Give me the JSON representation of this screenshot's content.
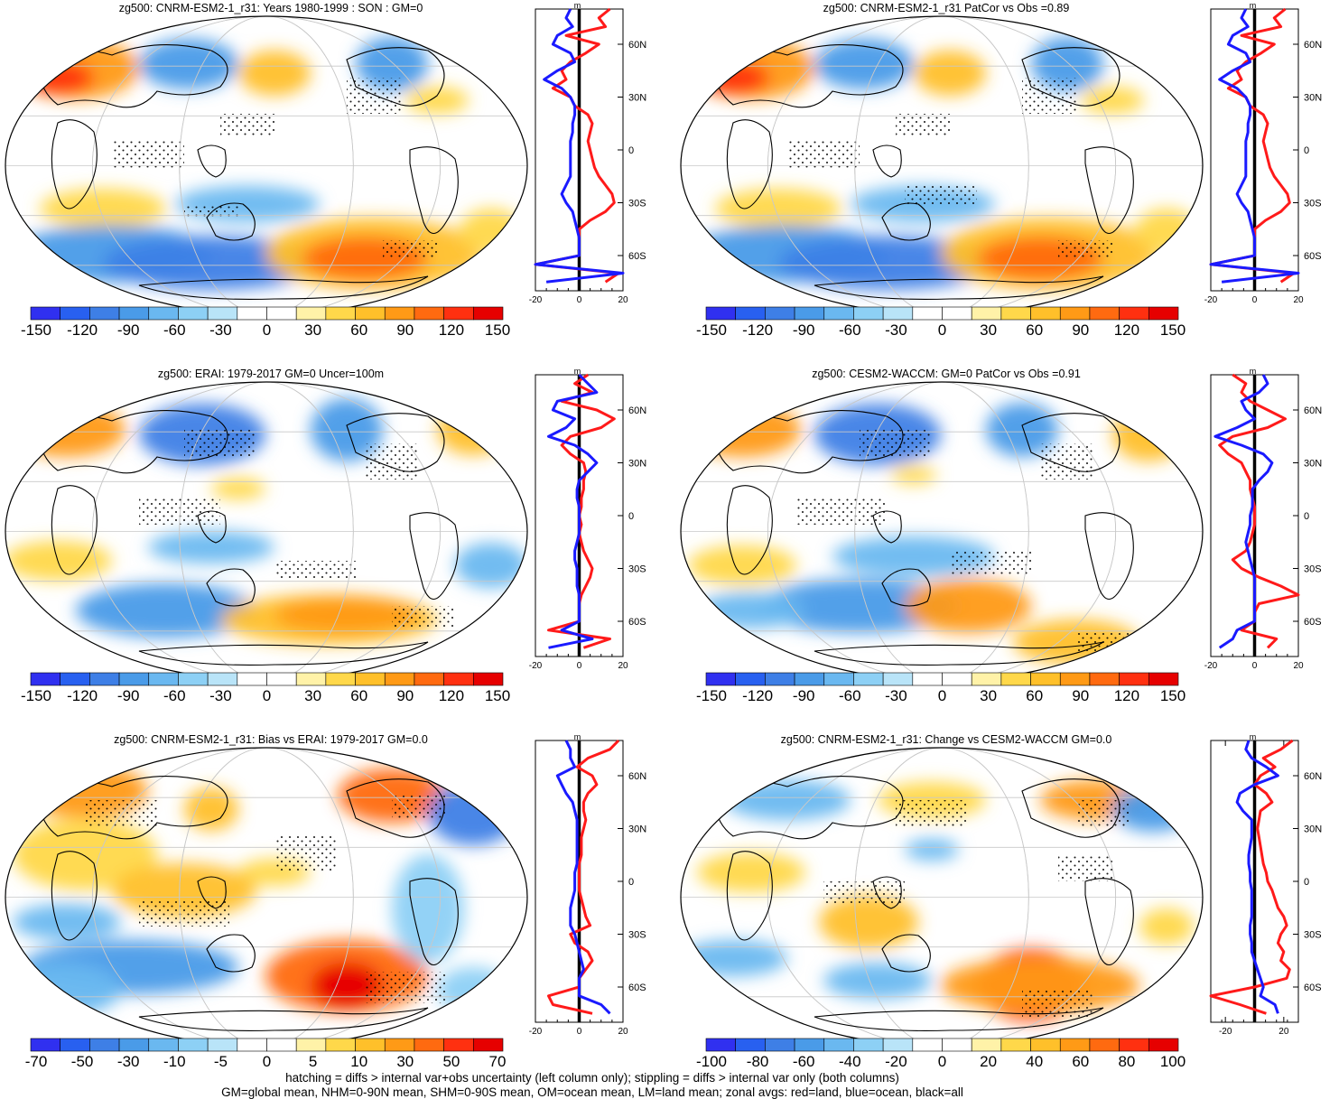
{
  "figure": {
    "footnote_line1": "hatching = diffs > internal var+obs uncertainty (left column only); stippling = diffs > internal var only (both columns)",
    "footnote_line2": "GM=global mean, NHM=0-90N mean, SHM=0-90S mean, OM=ocean mean, LM=land mean; zonal avgs: red=land, blue=ocean, black=all"
  },
  "colors": {
    "land_line": "#ff1a1a",
    "ocean_line": "#1a1aff",
    "all_line": "#000000",
    "palette_blue_to_red": [
      "#3030f0",
      "#2860f0",
      "#3e7fe6",
      "#4a9be8",
      "#6ab8f0",
      "#8dd0f5",
      "#b9e4f8",
      "#ffffff",
      "#ffffff",
      "#fff2a8",
      "#ffd84a",
      "#ffc02a",
      "#ff9a16",
      "#ff6a10",
      "#ff3010",
      "#e60000"
    ]
  },
  "chart_data": [
    {
      "type": "map",
      "title": "zg500: CNRM-ESM2-1_r31: Years 1980-1999 : SON : GM=0",
      "colorbar_labels": [
        "-150",
        "-120",
        "-90",
        "-60",
        "-30",
        "0",
        "30",
        "60",
        "90",
        "120",
        "150"
      ],
      "zonal_profile": {
        "type": "line",
        "units": "m",
        "x_ticks": [
          "-20",
          "0",
          "20"
        ],
        "xlim": [
          -20,
          20
        ],
        "y_ticks": [
          "60N",
          "30N",
          "0",
          "30S",
          "60S"
        ],
        "ylim_lat": [
          -80,
          80
        ],
        "lat": [
          80,
          75,
          70,
          65,
          60,
          55,
          50,
          45,
          40,
          35,
          30,
          25,
          20,
          15,
          10,
          5,
          0,
          -5,
          -10,
          -15,
          -20,
          -25,
          -30,
          -35,
          -40,
          -45,
          -50,
          -55,
          -60,
          -65,
          -70,
          -75
        ],
        "series": [
          {
            "name": "land",
            "values": [
              14,
              9,
              12,
              -6,
              9,
              3,
              -4,
              -8,
              -6,
              -12,
              -4,
              -2,
              4,
              6,
              5,
              4,
              5,
              6,
              7,
              9,
              12,
              15,
              16,
              12,
              5,
              0,
              0,
              0,
              0,
              -20,
              18,
              12
            ]
          },
          {
            "name": "ocean",
            "values": [
              -4,
              -6,
              -3,
              -10,
              -12,
              -4,
              -2,
              -10,
              -16,
              -8,
              -4,
              -2,
              -2,
              -3,
              -3,
              -4,
              -4,
              -4,
              -4,
              -4,
              -6,
              -8,
              -6,
              -3,
              -2,
              -1,
              0,
              0,
              0,
              -20,
              20,
              -15
            ]
          }
        ]
      }
    },
    {
      "type": "map",
      "title": "zg500: CNRM-ESM2-1_r31 PatCor vs Obs =0.89",
      "colorbar_labels": [
        "-150",
        "-120",
        "-90",
        "-60",
        "-30",
        "0",
        "30",
        "60",
        "90",
        "120",
        "150"
      ],
      "zonal_profile": {
        "type": "line",
        "units": "m",
        "x_ticks": [
          "-20",
          "0",
          "20"
        ],
        "xlim": [
          -20,
          20
        ],
        "y_ticks": [
          "60N",
          "30N",
          "0",
          "30S",
          "60S"
        ],
        "ylim_lat": [
          -80,
          80
        ],
        "lat": [
          80,
          75,
          70,
          65,
          60,
          55,
          50,
          45,
          40,
          35,
          30,
          25,
          20,
          15,
          10,
          5,
          0,
          -5,
          -10,
          -15,
          -20,
          -25,
          -30,
          -35,
          -40,
          -45,
          -50,
          -55,
          -60,
          -65,
          -70,
          -75
        ],
        "series": [
          {
            "name": "land",
            "values": [
              14,
              9,
              12,
              -6,
              9,
              3,
              -4,
              -8,
              -6,
              -12,
              -4,
              -2,
              4,
              6,
              5,
              4,
              5,
              6,
              7,
              9,
              12,
              15,
              16,
              12,
              5,
              0,
              0,
              0,
              0,
              -20,
              18,
              12
            ]
          },
          {
            "name": "ocean",
            "values": [
              -4,
              -6,
              -3,
              -10,
              -12,
              -4,
              -2,
              -10,
              -16,
              -8,
              -4,
              -2,
              -2,
              -3,
              -3,
              -4,
              -4,
              -4,
              -4,
              -4,
              -6,
              -8,
              -6,
              -3,
              -2,
              -1,
              0,
              0,
              0,
              -20,
              20,
              -15
            ]
          }
        ]
      }
    },
    {
      "type": "map",
      "title": "zg500: ERAI: 1979-2017 GM=0 Uncer=100m",
      "colorbar_labels": [
        "-150",
        "-120",
        "-90",
        "-60",
        "-30",
        "0",
        "30",
        "60",
        "90",
        "120",
        "150"
      ],
      "zonal_profile": {
        "type": "line",
        "units": "m",
        "x_ticks": [
          "-20",
          "0",
          "20"
        ],
        "xlim": [
          -20,
          20
        ],
        "y_ticks": [
          "60N",
          "30N",
          "0",
          "30S",
          "60S"
        ],
        "ylim_lat": [
          -80,
          80
        ],
        "lat": [
          80,
          75,
          70,
          65,
          60,
          55,
          50,
          45,
          40,
          35,
          30,
          25,
          20,
          15,
          10,
          5,
          0,
          -5,
          -10,
          -15,
          -20,
          -25,
          -30,
          -35,
          -40,
          -45,
          -50,
          -55,
          -60,
          -65,
          -70,
          -75
        ],
        "series": [
          {
            "name": "land",
            "values": [
              4,
              -2,
              6,
              -8,
              8,
              16,
              10,
              -4,
              -8,
              -4,
              2,
              3,
              2,
              2,
              1,
              1,
              0,
              1,
              0,
              1,
              2,
              4,
              6,
              5,
              3,
              1,
              0,
              0,
              0,
              -14,
              14,
              2
            ]
          },
          {
            "name": "ocean",
            "values": [
              0,
              4,
              8,
              -10,
              -12,
              -2,
              -6,
              -14,
              -2,
              4,
              8,
              4,
              0,
              -1,
              -1,
              0,
              0,
              0,
              0,
              -1,
              -2,
              -2,
              -1,
              -1,
              -1,
              0,
              0,
              0,
              0,
              -8,
              6,
              -14
            ]
          }
        ]
      }
    },
    {
      "type": "map",
      "title": "zg500: CESM2-WACCM: GM=0 PatCor vs Obs =0.91",
      "colorbar_labels": [
        "-150",
        "-120",
        "-90",
        "-60",
        "-30",
        "0",
        "30",
        "60",
        "90",
        "120",
        "150"
      ],
      "zonal_profile": {
        "type": "line",
        "units": "m",
        "x_ticks": [
          "-20",
          "0",
          "20"
        ],
        "xlim": [
          -20,
          20
        ],
        "y_ticks": [
          "60N",
          "30N",
          "0",
          "30S",
          "60S"
        ],
        "ylim_lat": [
          -80,
          80
        ],
        "lat": [
          80,
          75,
          70,
          65,
          60,
          55,
          50,
          45,
          40,
          35,
          30,
          25,
          20,
          15,
          10,
          5,
          0,
          -5,
          -10,
          -15,
          -20,
          -25,
          -30,
          -35,
          -40,
          -45,
          -50,
          -55,
          -60,
          -65,
          -70,
          -75
        ],
        "series": [
          {
            "name": "land",
            "values": [
              -10,
              -4,
              -6,
              -2,
              6,
              14,
              6,
              -10,
              -16,
              -12,
              -6,
              -4,
              -2,
              -2,
              -1,
              0,
              0,
              0,
              -1,
              -2,
              -4,
              -10,
              -6,
              2,
              12,
              20,
              2,
              0,
              0,
              -6,
              10,
              6
            ]
          },
          {
            "name": "ocean",
            "values": [
              4,
              6,
              2,
              -6,
              -4,
              0,
              -8,
              -18,
              -6,
              4,
              8,
              6,
              2,
              -1,
              -1,
              -1,
              -2,
              -2,
              -3,
              -4,
              -3,
              -2,
              -1,
              0,
              0,
              0,
              0,
              0,
              0,
              -8,
              -10,
              -16
            ]
          }
        ]
      }
    },
    {
      "type": "map",
      "title": "zg500: CNRM-ESM2-1_r31: Bias vs ERAI: 1979-2017  GM=0.0",
      "colorbar_labels": [
        "-70",
        "-50",
        "-30",
        "-10",
        "-5",
        "0",
        "5",
        "10",
        "30",
        "50",
        "70"
      ],
      "zonal_profile": {
        "type": "line",
        "units": "m",
        "x_ticks": [
          "-20",
          "0",
          "20"
        ],
        "xlim": [
          -20,
          20
        ],
        "y_ticks": [
          "60N",
          "30N",
          "0",
          "30S",
          "60S"
        ],
        "ylim_lat": [
          -80,
          80
        ],
        "lat": [
          80,
          75,
          70,
          65,
          60,
          55,
          50,
          45,
          40,
          35,
          30,
          25,
          20,
          15,
          10,
          5,
          0,
          -5,
          -10,
          -15,
          -20,
          -25,
          -30,
          -35,
          -40,
          -45,
          -50,
          -55,
          -60,
          -65,
          -70,
          -75
        ],
        "series": [
          {
            "name": "land",
            "values": [
              18,
              14,
              4,
              -1,
              6,
              8,
              4,
              2,
              2,
              3,
              2,
              1,
              1,
              1,
              0,
              0,
              0,
              0,
              1,
              2,
              3,
              5,
              -4,
              -2,
              4,
              6,
              3,
              0,
              0,
              -14,
              -12,
              6
            ]
          },
          {
            "name": "ocean",
            "values": [
              -6,
              -4,
              -4,
              -2,
              -10,
              -8,
              -6,
              -3,
              -2,
              -1,
              -1,
              -1,
              -1,
              -1,
              -1,
              -2,
              -2,
              -2,
              -3,
              -4,
              -4,
              -4,
              -2,
              -1,
              0,
              1,
              2,
              0,
              0,
              0,
              10,
              14
            ]
          }
        ]
      }
    },
    {
      "type": "map",
      "title": "zg500: CNRM-ESM2-1_r31: Change vs CESM2-WACCM GM=0.0",
      "colorbar_labels": [
        "-100",
        "-80",
        "-60",
        "-40",
        "-20",
        "0",
        "20",
        "40",
        "60",
        "80",
        "100"
      ],
      "zonal_profile": {
        "type": "line",
        "units": "m",
        "x_ticks": [
          "-20",
          "20"
        ],
        "xlim": [
          -30,
          30
        ],
        "y_ticks": [
          "60N",
          "30N",
          "0",
          "30S",
          "60S"
        ],
        "ylim_lat": [
          -80,
          80
        ],
        "lat": [
          80,
          75,
          70,
          65,
          60,
          55,
          50,
          45,
          40,
          35,
          30,
          25,
          20,
          15,
          10,
          5,
          0,
          -5,
          -10,
          -15,
          -20,
          -25,
          -30,
          -35,
          -40,
          -45,
          -50,
          -55,
          -60,
          -65,
          -70,
          -75
        ],
        "series": [
          {
            "name": "land",
            "values": [
              26,
              18,
              6,
              14,
              4,
              0,
              8,
              12,
              4,
              3,
              2,
              3,
              4,
              5,
              6,
              8,
              9,
              12,
              14,
              16,
              20,
              22,
              18,
              16,
              20,
              18,
              24,
              22,
              0,
              -30,
              -10,
              8
            ]
          },
          {
            "name": "ocean",
            "values": [
              -4,
              -6,
              -2,
              8,
              16,
              0,
              -10,
              -12,
              -8,
              -2,
              -2,
              -2,
              -3,
              -4,
              -4,
              -3,
              -3,
              -2,
              -2,
              -2,
              -2,
              -3,
              -3,
              -2,
              -2,
              0,
              2,
              4,
              6,
              4,
              14,
              16
            ]
          }
        ]
      }
    }
  ]
}
